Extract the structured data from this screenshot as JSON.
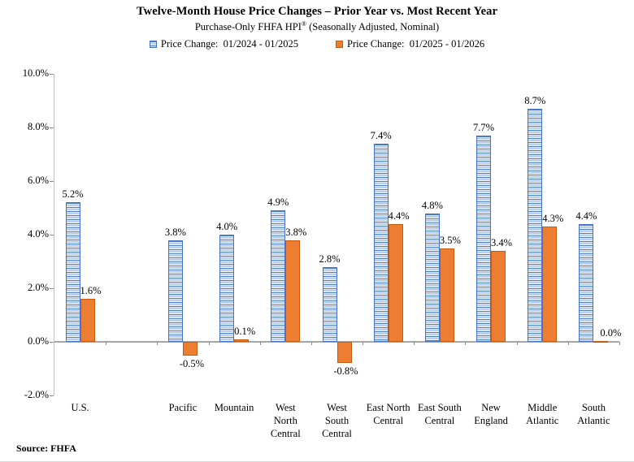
{
  "chart_data": {
    "type": "bar",
    "title": "Twelve-Month House Price Changes – Prior Year vs. Most Recent Year",
    "subtitle": "Purchase-Only FHFA HPI® (Seasonally Adjusted, Nominal)",
    "subtitle_parts": {
      "pre": "Purchase-Only FHFA HPI",
      "reg": "®",
      "post": " (Seasonally Adjusted, Nominal)"
    },
    "legend_position": "top",
    "grid": false,
    "categories": [
      "U.S.",
      "Pacific",
      "Mountain",
      "West North Central",
      "West South Central",
      "East North Central",
      "East South Central",
      "New England",
      "Middle Atlantic",
      "South Atlantic"
    ],
    "category_axis_labels": [
      "U.S.",
      "Pacific",
      "Mountain",
      "West\nNorth\nCentral",
      "West\nSouth\nCentral",
      "East North\nCentral",
      "East South\nCentral",
      "New\nEngland",
      "Middle\nAtlantic",
      "South\nAtlantic"
    ],
    "series": [
      {
        "name": "Price Change:  01/2024 - 01/2025",
        "color": "#4472C4",
        "fill_pattern": "horizontal-stripes",
        "values": [
          5.2,
          3.8,
          4.0,
          4.9,
          2.8,
          7.4,
          4.8,
          7.7,
          8.7,
          4.4
        ],
        "data_labels": [
          "5.2%",
          "3.8%",
          "4.0%",
          "4.9%",
          "2.8%",
          "7.4%",
          "4.8%",
          "7.7%",
          "8.7%",
          "4.4%"
        ]
      },
      {
        "name": "Price Change:  01/2025 - 01/2026",
        "color": "#ED7D31",
        "fill_pattern": "solid",
        "values": [
          1.6,
          -0.5,
          0.1,
          3.8,
          -0.8,
          4.4,
          3.5,
          3.4,
          4.3,
          0.0
        ],
        "data_labels": [
          "1.6%",
          "-0.5%",
          "0.1%",
          "3.8%",
          "-0.8%",
          "4.4%",
          "3.5%",
          "3.4%",
          "4.3%",
          "0.0%"
        ]
      }
    ],
    "ylim": [
      -2,
      10
    ],
    "ytick_step": 2,
    "ytick_labels": [
      "10.0%",
      "8.0%",
      "6.0%",
      "4.0%",
      "2.0%",
      "0.0%",
      "-2.0%"
    ],
    "source": "Source: FHFA"
  }
}
